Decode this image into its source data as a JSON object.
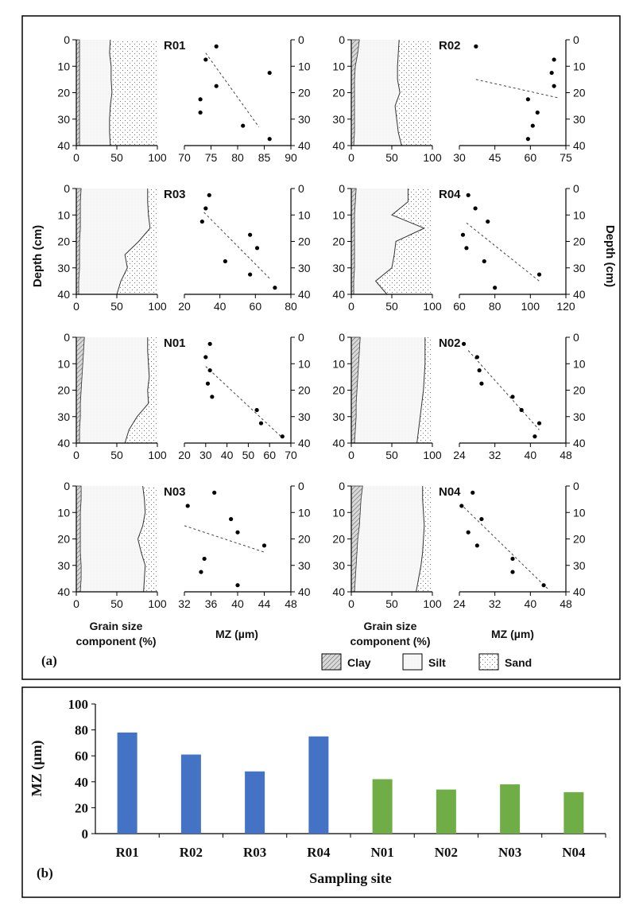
{
  "panel_a": {
    "label": "(a)",
    "depth_axis_label": "Depth (cm)",
    "grain_axis_label_line1": "Grain size",
    "grain_axis_label_line2": "component (%)",
    "mz_axis_label": "MZ (µm)",
    "legend": [
      {
        "name": "Clay"
      },
      {
        "name": "Silt"
      },
      {
        "name": "Sand"
      }
    ]
  },
  "panel_b": {
    "label": "(b)"
  },
  "chart_data": [
    {
      "type": "area",
      "kind": "grain_size_profiles",
      "depth_ticks": [
        0,
        10,
        20,
        30,
        40
      ],
      "x_ticks": [
        0,
        50,
        100
      ],
      "x_range": [
        0,
        100
      ],
      "depth_range": [
        0,
        40
      ],
      "sites": [
        {
          "site": "R01",
          "depth": [
            0,
            5,
            10,
            15,
            20,
            25,
            30,
            35,
            40
          ],
          "clay": [
            4,
            4,
            4,
            4,
            4,
            4,
            4,
            4,
            4
          ],
          "silt_sand_boundary": [
            42,
            41,
            43,
            43,
            44,
            42,
            41,
            41,
            42
          ]
        },
        {
          "site": "R02",
          "depth": [
            0,
            5,
            10,
            15,
            20,
            25,
            30,
            35,
            40
          ],
          "clay": [
            10,
            8,
            5,
            4,
            4,
            4,
            4,
            4,
            3
          ],
          "silt_sand_boundary": [
            59,
            58,
            57,
            57,
            60,
            54,
            56,
            58,
            62
          ]
        },
        {
          "site": "R03",
          "depth": [
            0,
            5,
            10,
            15,
            20,
            25,
            30,
            35,
            40
          ],
          "clay": [
            6,
            5,
            5,
            5,
            4,
            4,
            4,
            3,
            3
          ],
          "silt_sand_boundary": [
            88,
            88,
            89,
            91,
            77,
            60,
            63,
            55,
            50
          ]
        },
        {
          "site": "R04",
          "depth": [
            0,
            5,
            10,
            15,
            20,
            25,
            30,
            35,
            40
          ],
          "clay": [
            6,
            5,
            4,
            4,
            4,
            4,
            4,
            3,
            3
          ],
          "silt_sand_boundary": [
            70,
            70,
            50,
            90,
            55,
            53,
            50,
            30,
            44
          ]
        },
        {
          "site": "N01",
          "depth": [
            0,
            5,
            10,
            15,
            20,
            25,
            30,
            35,
            40
          ],
          "clay": [
            10,
            9,
            8,
            7,
            6,
            5,
            5,
            4,
            4
          ],
          "silt_sand_boundary": [
            88,
            88,
            89,
            90,
            88,
            89,
            75,
            65,
            60
          ]
        },
        {
          "site": "N02",
          "depth": [
            0,
            5,
            10,
            15,
            20,
            25,
            30,
            35,
            40
          ],
          "clay": [
            11,
            10,
            9,
            8,
            7,
            6,
            6,
            5,
            4
          ],
          "silt_sand_boundary": [
            91,
            91,
            91,
            90,
            89,
            87,
            85,
            83,
            81
          ]
        },
        {
          "site": "N03",
          "depth": [
            0,
            5,
            10,
            15,
            20,
            25,
            30,
            35,
            40
          ],
          "clay": [
            6,
            6,
            5,
            5,
            5,
            5,
            6,
            6,
            5
          ],
          "silt_sand_boundary": [
            82,
            84,
            85,
            82,
            76,
            80,
            85,
            84,
            83
          ]
        },
        {
          "site": "N04",
          "depth": [
            0,
            5,
            10,
            15,
            20,
            25,
            30,
            35,
            40
          ],
          "clay": [
            14,
            12,
            11,
            10,
            8,
            7,
            6,
            5,
            4
          ],
          "silt_sand_boundary": [
            88,
            88,
            89,
            90,
            89,
            88,
            86,
            83,
            80
          ]
        }
      ]
    },
    {
      "type": "scatter",
      "kind": "mz_depth_profiles",
      "y_ticks": [
        0,
        10,
        20,
        30,
        40
      ],
      "ylim": [
        0,
        40
      ],
      "sites": [
        {
          "site": "R01",
          "x_ticks": [
            70,
            75,
            80,
            85,
            90
          ],
          "xlim": [
            70,
            90
          ],
          "mz": [
            76,
            74,
            76,
            86,
            73,
            73,
            81,
            86
          ],
          "depth": [
            2.5,
            7.5,
            17.5,
            12.5,
            22.5,
            27.5,
            32.5,
            37.5
          ],
          "trend": [
            [
              74,
              5
            ],
            [
              84,
              33
            ]
          ]
        },
        {
          "site": "R02",
          "x_ticks": [
            30,
            45,
            60,
            75
          ],
          "xlim": [
            30,
            75
          ],
          "mz": [
            37,
            70,
            69,
            70,
            59,
            63,
            61,
            59
          ],
          "depth": [
            2.5,
            7.5,
            12.5,
            17.5,
            22.5,
            27.5,
            32.5,
            37.5
          ],
          "trend": [
            [
              37,
              15
            ],
            [
              72,
              22
            ]
          ]
        },
        {
          "site": "R03",
          "x_ticks": [
            20,
            40,
            60,
            80
          ],
          "xlim": [
            20,
            80
          ],
          "mz": [
            34,
            32,
            30,
            57,
            61,
            43,
            57,
            71
          ],
          "depth": [
            2.5,
            7.5,
            12.5,
            17.5,
            22.5,
            27.5,
            32.5,
            37.5
          ],
          "trend": [
            [
              31,
              9
            ],
            [
              68,
              34
            ]
          ]
        },
        {
          "site": "R04",
          "x_ticks": [
            60,
            80,
            100,
            120
          ],
          "xlim": [
            60,
            120
          ],
          "mz": [
            65,
            69,
            76,
            62,
            64,
            74,
            105,
            80
          ],
          "depth": [
            2.5,
            7.5,
            12.5,
            17.5,
            22.5,
            27.5,
            32.5,
            37.5
          ],
          "trend": [
            [
              64,
              13
            ],
            [
              105,
              35
            ]
          ]
        },
        {
          "site": "N01",
          "x_ticks": [
            20,
            30,
            40,
            50,
            60,
            70
          ],
          "xlim": [
            20,
            70
          ],
          "mz": [
            32,
            30,
            32,
            31,
            33,
            54,
            56,
            66
          ],
          "depth": [
            2.5,
            7.5,
            12.5,
            17.5,
            22.5,
            27.5,
            32.5,
            37.5
          ],
          "trend": [
            [
              30,
              11
            ],
            [
              66,
              38
            ]
          ]
        },
        {
          "site": "N02",
          "x_ticks": [
            24,
            32,
            40,
            48
          ],
          "xlim": [
            24,
            48
          ],
          "mz": [
            25,
            28,
            28.5,
            29,
            36,
            38,
            42,
            41
          ],
          "depth": [
            2.5,
            7.5,
            12.5,
            17.5,
            22.5,
            27.5,
            32.5,
            37.5
          ],
          "trend": [
            [
              26,
              5
            ],
            [
              42,
              35
            ]
          ]
        },
        {
          "site": "N03",
          "x_ticks": [
            32,
            36,
            40,
            44,
            48
          ],
          "xlim": [
            32,
            48
          ],
          "mz": [
            36.5,
            32.5,
            39,
            40,
            44,
            35,
            34.5,
            40
          ],
          "depth": [
            2.5,
            7.5,
            12.5,
            17.5,
            22.5,
            27.5,
            32.5,
            37.5
          ],
          "trend": [
            [
              32,
              15
            ],
            [
              44,
              25
            ]
          ]
        },
        {
          "site": "N04",
          "x_ticks": [
            24,
            32,
            40,
            48
          ],
          "xlim": [
            24,
            48
          ],
          "mz": [
            27,
            24.5,
            29,
            26,
            28,
            36,
            36,
            43
          ],
          "depth": [
            2.5,
            7.5,
            12.5,
            17.5,
            22.5,
            27.5,
            32.5,
            37.5
          ],
          "trend": [
            [
              25,
              8
            ],
            [
              44,
              39
            ]
          ]
        }
      ]
    },
    {
      "type": "bar",
      "categories": [
        "R01",
        "R02",
        "R03",
        "R04",
        "N01",
        "N02",
        "N03",
        "N04"
      ],
      "values": [
        78,
        61,
        48,
        75,
        42,
        34,
        38,
        32
      ],
      "colors": [
        "#4472c4",
        "#4472c4",
        "#4472c4",
        "#4472c4",
        "#70ad47",
        "#70ad47",
        "#70ad47",
        "#70ad47"
      ],
      "ylabel": "MZ (µm)",
      "xlabel": "Sampling site",
      "ylim": [
        0,
        100
      ],
      "y_ticks": [
        0,
        20,
        40,
        60,
        80,
        100
      ]
    }
  ]
}
